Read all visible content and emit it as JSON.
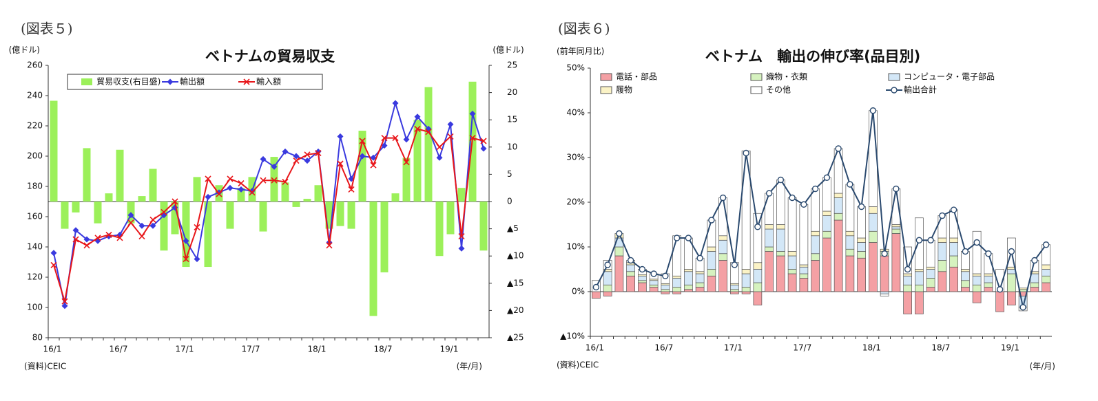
{
  "chart_data": [
    {
      "type": "bar_line",
      "figure_label": "(図表５)",
      "title": "ベトナムの貿易収支",
      "ylabel": "(億ドル)",
      "y2label": "(億ドル)",
      "source": "(資料)CEIC",
      "x_unit_label": "(年/月)",
      "categories": [
        "16/1",
        null,
        null,
        null,
        null,
        null,
        "16/7",
        null,
        null,
        null,
        null,
        null,
        "17/1",
        null,
        null,
        null,
        null,
        null,
        "17/7",
        null,
        null,
        null,
        null,
        null,
        "18/1",
        null,
        null,
        null,
        null,
        null,
        "18/7",
        null,
        null,
        null,
        null,
        null,
        "19/1",
        null,
        null,
        null
      ],
      "ylim": [
        80,
        260
      ],
      "yticks": [
        80,
        100,
        120,
        140,
        160,
        180,
        200,
        220,
        240,
        260
      ],
      "y2lim": [
        -25,
        25
      ],
      "y2ticks": [
        {
          "value": -25,
          "label": "▲25"
        },
        {
          "value": -20,
          "label": "▲20"
        },
        {
          "value": -15,
          "label": "▲15"
        },
        {
          "value": -10,
          "label": "▲10"
        },
        {
          "value": -5,
          "label": "▲5"
        },
        0,
        5,
        10,
        15,
        20,
        25
      ],
      "series": [
        {
          "name": "貿易収支(右目盛)",
          "kind": "bar",
          "axis": "y2",
          "color": "#9cf05a",
          "values": [
            18.5,
            -5,
            -2,
            9.8,
            -4,
            1.5,
            9.5,
            -4,
            1,
            6,
            -9,
            -6,
            -12,
            4.5,
            -12,
            3,
            -5,
            2.5,
            4.5,
            -5.5,
            8.2,
            3.5,
            -1,
            0.5,
            3,
            -5,
            -4.5,
            -5,
            13,
            -21,
            -13,
            1.5,
            8,
            15,
            21,
            -10,
            -6,
            2.5,
            22,
            -9
          ]
        },
        {
          "name": "輸出額",
          "kind": "line",
          "marker": "diamond",
          "color": "#3a3adf",
          "values": [
            136,
            101,
            151,
            145,
            144,
            147,
            148,
            161,
            154,
            154,
            161,
            166,
            144,
            132,
            173,
            176,
            179,
            178,
            177,
            198,
            193,
            203,
            200,
            197,
            203,
            143,
            213,
            185,
            200,
            199,
            207,
            235,
            211,
            226,
            218,
            199,
            221,
            139,
            228,
            205
          ]
        },
        {
          "name": "輸入額",
          "kind": "line",
          "marker": "cross",
          "color": "#e8161a",
          "values": [
            128,
            104,
            145,
            141,
            146,
            148,
            146,
            156,
            147,
            158,
            163,
            170,
            132,
            153,
            185,
            175,
            185,
            182,
            176,
            184,
            184,
            183,
            197,
            201,
            202,
            141,
            195,
            178,
            210,
            194,
            212,
            212,
            196,
            218,
            216,
            206,
            213,
            147,
            212,
            210
          ]
        }
      ]
    },
    {
      "type": "stacked_bar_line",
      "figure_label": "(図表６)",
      "title": "ベトナム　輸出の伸び率(品目別)",
      "ylabel": "(前年同月比)",
      "source": "(資料)CEIC",
      "x_unit_label": "(年/月)",
      "categories": [
        "16/1",
        null,
        null,
        null,
        null,
        null,
        "16/7",
        null,
        null,
        null,
        null,
        null,
        "17/1",
        null,
        null,
        null,
        null,
        null,
        "17/7",
        null,
        null,
        null,
        null,
        null,
        "18/1",
        null,
        null,
        null,
        null,
        null,
        "18/7",
        null,
        null,
        null,
        null,
        null,
        "19/1",
        null,
        null,
        null
      ],
      "ylim": [
        -10,
        50
      ],
      "yticks": [
        {
          "value": -10,
          "label": "▲10%"
        },
        {
          "value": 0,
          "label": "0%"
        },
        {
          "value": 10,
          "label": "10%"
        },
        {
          "value": 20,
          "label": "20%"
        },
        {
          "value": 30,
          "label": "30%"
        },
        {
          "value": 40,
          "label": "40%"
        },
        {
          "value": 50,
          "label": "50%"
        }
      ],
      "series": [
        {
          "name": "電話・部品",
          "kind": "bar",
          "color": "#f4a0a4",
          "values": [
            -1.5,
            -1,
            8,
            3.5,
            2,
            1,
            -0.5,
            -0.5,
            0.5,
            1,
            3.5,
            7,
            -0.5,
            -0.5,
            -3,
            9,
            8,
            4,
            3,
            7,
            12,
            16,
            8,
            7.5,
            11,
            8,
            13,
            -5,
            -5,
            1,
            4.5,
            5.5,
            1,
            -2.5,
            1,
            -4.5,
            -3,
            -1,
            1,
            2
          ]
        },
        {
          "name": "織物・衣類",
          "kind": "bar",
          "color": "#d6f2bf",
          "values": [
            0,
            1.5,
            2,
            1,
            0.5,
            0.5,
            0.5,
            1,
            1,
            1,
            1.5,
            1.5,
            0.5,
            1,
            2,
            1,
            1,
            1,
            1,
            1.5,
            1.5,
            1.5,
            1.5,
            1.5,
            2.5,
            1,
            1,
            1.5,
            1.5,
            2,
            2.5,
            2.5,
            1.5,
            1.5,
            1,
            0,
            4,
            0.5,
            1,
            1.5
          ]
        },
        {
          "name": "コンピュータ・電子部品",
          "kind": "bar",
          "color": "#d3e7f7",
          "values": [
            0,
            3,
            2,
            1.5,
            1,
            1,
            1,
            2,
            3,
            2,
            4,
            3,
            1,
            3,
            3,
            4,
            5,
            3,
            1.5,
            4,
            3.5,
            3.5,
            3,
            2,
            4,
            -0.5,
            0.5,
            2,
            3,
            2,
            4,
            3,
            2,
            2,
            1.5,
            0,
            1,
            -2.5,
            2,
            1.5
          ]
        },
        {
          "name": "履物",
          "kind": "bar",
          "color": "#fbf3c6",
          "values": [
            0,
            0.5,
            1,
            0.5,
            0.3,
            0.3,
            0.3,
            0.5,
            0.5,
            0.5,
            1,
            1,
            0.3,
            1,
            1.5,
            1,
            1,
            1,
            0.5,
            1,
            1,
            1,
            1,
            1,
            1.5,
            0.5,
            0.5,
            0.5,
            0.5,
            0.5,
            1,
            1,
            0.5,
            0.5,
            0.5,
            0,
            0.5,
            0.3,
            0.5,
            1
          ]
        },
        {
          "name": "その他",
          "kind": "bar",
          "color": "#ffffff",
          "values": [
            2.5,
            2,
            0,
            0.5,
            1.2,
            1.2,
            2.2,
            9,
            7,
            3,
            6,
            8.5,
            4.7,
            26.5,
            11,
            7,
            10,
            12,
            13.5,
            9.5,
            7.5,
            10,
            10.5,
            7,
            21.5,
            -0.5,
            8,
            6,
            11.5,
            6,
            5,
            6.3,
            4,
            9.5,
            4.5,
            5,
            6.5,
            -0.8,
            2.5,
            4.5
          ]
        },
        {
          "name": "輸出合計",
          "kind": "line",
          "marker": "circle",
          "color": "#2b4a6f",
          "values": [
            1,
            6,
            13,
            7,
            5,
            4,
            3.5,
            12,
            12,
            7.5,
            16,
            21,
            6,
            31,
            14.5,
            22,
            25,
            21,
            19.5,
            23,
            25.5,
            32,
            24,
            19,
            40.5,
            8.5,
            23,
            5,
            11.5,
            11.5,
            17,
            18.3,
            9,
            11,
            8.5,
            0.5,
            9,
            -3.5,
            7,
            10.5
          ]
        }
      ]
    }
  ]
}
